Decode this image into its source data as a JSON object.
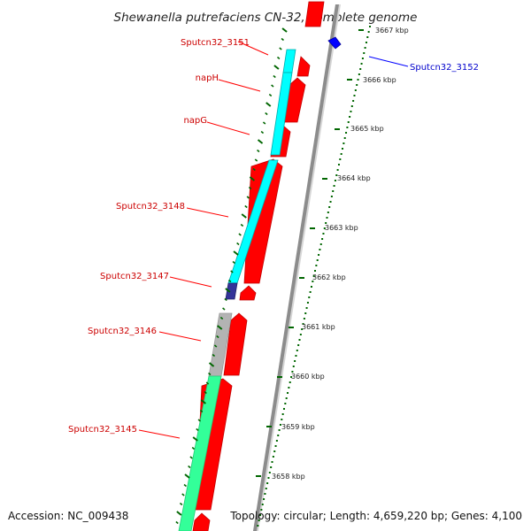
{
  "title": "Shewanella putrefaciens CN-32, complete genome",
  "footer": {
    "accession": "Accession: NC_009438",
    "topology": "Topology: circular; Length: 4,659,220 bp; Genes: 4,100"
  },
  "colors": {
    "gene_label_red": "#cc0000",
    "gene_label_blue": "#0000cc",
    "gene_arrow": "#ff0000",
    "cog_cyan": "#00ffff",
    "cog_navy": "#333399",
    "cog_gray": "#b3b3b3",
    "cog_green": "#33ff99",
    "tick_green": "#006600",
    "backbone": "#888888"
  },
  "genes": [
    {
      "label": "Sputcn32_3151",
      "color": "red"
    },
    {
      "label": "napH",
      "color": "red"
    },
    {
      "label": "napG",
      "color": "red"
    },
    {
      "label": "Sputcn32_3148",
      "color": "red"
    },
    {
      "label": "Sputcn32_3147",
      "color": "red"
    },
    {
      "label": "Sputcn32_3146",
      "color": "red"
    },
    {
      "label": "Sputcn32_3145",
      "color": "red"
    },
    {
      "label": "Sputcn32_3152",
      "color": "blue"
    }
  ],
  "ruler": [
    "3667 kbp",
    "3666 kbp",
    "3665 kbp",
    "3664 kbp",
    "3663 kbp",
    "3662 kbp",
    "3661 kbp",
    "3660 kbp",
    "3659 kbp",
    "3658 kbp"
  ]
}
